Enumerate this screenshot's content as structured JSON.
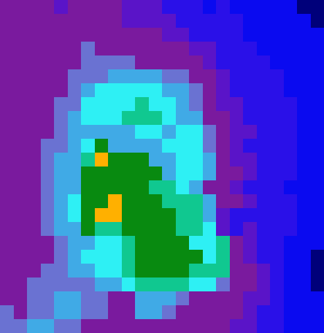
{
  "chart_data": {
    "type": "heatmap",
    "tick_labels": false,
    "zlim": [
      0,
      10
    ],
    "cells": [
      [
        4,
        4,
        4,
        4,
        3,
        4,
        4,
        4,
        4,
        3,
        3,
        3,
        2,
        2,
        2,
        1,
        2,
        1,
        1,
        1,
        1,
        1,
        0,
        0
      ],
      [
        4,
        4,
        4,
        4,
        4,
        4,
        4,
        4,
        4,
        3,
        3,
        3,
        3,
        2,
        2,
        2,
        2,
        2,
        1,
        1,
        1,
        1,
        1,
        0
      ],
      [
        4,
        4,
        4,
        4,
        4,
        4,
        4,
        4,
        4,
        4,
        4,
        4,
        3,
        3,
        2,
        2,
        2,
        2,
        1,
        1,
        1,
        1,
        1,
        1
      ],
      [
        4,
        4,
        4,
        4,
        4,
        4,
        5,
        4,
        4,
        4,
        4,
        4,
        4,
        4,
        3,
        3,
        2,
        2,
        2,
        1,
        1,
        1,
        1,
        1
      ],
      [
        4,
        4,
        4,
        4,
        4,
        4,
        5,
        5,
        5,
        5,
        4,
        4,
        4,
        4,
        4,
        3,
        2,
        2,
        2,
        2,
        1,
        1,
        1,
        1
      ],
      [
        4,
        4,
        4,
        4,
        4,
        5,
        5,
        5,
        6,
        6,
        6,
        6,
        5,
        5,
        4,
        4,
        3,
        2,
        2,
        2,
        2,
        1,
        1,
        1
      ],
      [
        4,
        4,
        4,
        4,
        4,
        5,
        6,
        7,
        7,
        7,
        7,
        7,
        6,
        6,
        5,
        4,
        3,
        2,
        2,
        2,
        2,
        1,
        1,
        1
      ],
      [
        4,
        4,
        4,
        4,
        5,
        5,
        7,
        7,
        7,
        7,
        8,
        7,
        7,
        6,
        5,
        4,
        3,
        3,
        2,
        2,
        2,
        2,
        1,
        1
      ],
      [
        4,
        4,
        4,
        4,
        5,
        6,
        7,
        7,
        7,
        8,
        8,
        8,
        7,
        6,
        6,
        4,
        4,
        3,
        2,
        2,
        2,
        2,
        1,
        1
      ],
      [
        4,
        4,
        4,
        4,
        5,
        6,
        6,
        6,
        6,
        6,
        7,
        7,
        6,
        7,
        7,
        5,
        4,
        3,
        3,
        2,
        2,
        2,
        1,
        1
      ],
      [
        4,
        4,
        4,
        5,
        5,
        6,
        7,
        9,
        6,
        6,
        6,
        6,
        7,
        7,
        7,
        5,
        4,
        3,
        2,
        2,
        2,
        2,
        1,
        1
      ],
      [
        4,
        4,
        4,
        5,
        6,
        6,
        8,
        10,
        9,
        9,
        9,
        6,
        6,
        7,
        7,
        6,
        4,
        3,
        3,
        2,
        2,
        2,
        1,
        1
      ],
      [
        4,
        4,
        4,
        5,
        6,
        6,
        9,
        9,
        9,
        9,
        9,
        9,
        6,
        7,
        7,
        6,
        4,
        4,
        3,
        2,
        2,
        2,
        1,
        1
      ],
      [
        4,
        4,
        4,
        5,
        6,
        6,
        9,
        9,
        9,
        9,
        9,
        8,
        8,
        7,
        6,
        4,
        4,
        3,
        2,
        2,
        2,
        1,
        1,
        1
      ],
      [
        4,
        4,
        4,
        5,
        6,
        7,
        9,
        9,
        10,
        9,
        9,
        9,
        8,
        8,
        8,
        6,
        4,
        4,
        3,
        2,
        2,
        2,
        1,
        1
      ],
      [
        4,
        4,
        4,
        5,
        6,
        7,
        9,
        10,
        10,
        9,
        9,
        9,
        9,
        8,
        8,
        6,
        3,
        2,
        2,
        2,
        2,
        2,
        1,
        1
      ],
      [
        4,
        4,
        4,
        5,
        6,
        6,
        9,
        8,
        8,
        9,
        9,
        9,
        9,
        8,
        8,
        7,
        3,
        2,
        3,
        2,
        2,
        2,
        1,
        1
      ],
      [
        4,
        4,
        4,
        4,
        5,
        6,
        6,
        7,
        7,
        8,
        9,
        9,
        9,
        9,
        7,
        7,
        8,
        4,
        3,
        2,
        2,
        1,
        1,
        1
      ],
      [
        4,
        4,
        4,
        4,
        5,
        6,
        7,
        7,
        7,
        8,
        9,
        9,
        9,
        9,
        9,
        7,
        8,
        4,
        3,
        2,
        2,
        1,
        1,
        0
      ],
      [
        4,
        4,
        4,
        5,
        5,
        6,
        6,
        7,
        7,
        8,
        9,
        9,
        9,
        9,
        8,
        8,
        8,
        4,
        4,
        3,
        2,
        1,
        1,
        0
      ],
      [
        4,
        4,
        5,
        5,
        5,
        5,
        5,
        6,
        6,
        7,
        8,
        8,
        8,
        8,
        7,
        7,
        5,
        4,
        4,
        3,
        2,
        1,
        1,
        0
      ],
      [
        4,
        4,
        5,
        5,
        6,
        6,
        5,
        5,
        4,
        4,
        6,
        6,
        6,
        5,
        4,
        4,
        4,
        4,
        3,
        3,
        2,
        1,
        1,
        1
      ],
      [
        5,
        4,
        5,
        5,
        6,
        6,
        5,
        5,
        4,
        4,
        6,
        6,
        5,
        4,
        4,
        4,
        4,
        4,
        3,
        2,
        2,
        1,
        1,
        1
      ],
      [
        5,
        5,
        6,
        6,
        5,
        5,
        4,
        4,
        4,
        4,
        4,
        4,
        4,
        4,
        4,
        4,
        4,
        3,
        3,
        2,
        2,
        1,
        1,
        1
      ]
    ]
  }
}
